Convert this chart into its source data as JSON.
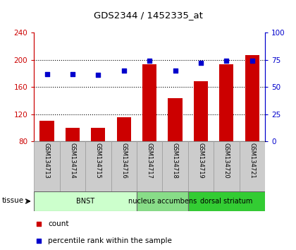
{
  "title": "GDS2344 / 1452335_at",
  "categories": [
    "GSM134713",
    "GSM134714",
    "GSM134715",
    "GSM134716",
    "GSM134717",
    "GSM134718",
    "GSM134719",
    "GSM134720",
    "GSM134721"
  ],
  "counts": [
    110,
    100,
    100,
    115,
    193,
    143,
    168,
    193,
    207
  ],
  "percentiles": [
    62,
    62,
    61,
    65,
    74,
    65,
    72,
    74,
    74
  ],
  "bar_color": "#cc0000",
  "dot_color": "#0000cc",
  "ylim_left": [
    80,
    240
  ],
  "ylim_right": [
    0,
    100
  ],
  "yticks_left": [
    80,
    120,
    160,
    200,
    240
  ],
  "yticks_right": [
    0,
    25,
    50,
    75,
    100
  ],
  "groups": [
    {
      "label": "BNST",
      "start": 0,
      "end": 3,
      "color": "#ccffcc"
    },
    {
      "label": "nucleus accumbens",
      "start": 4,
      "end": 5,
      "color": "#88dd88"
    },
    {
      "label": "dorsal striatum",
      "start": 6,
      "end": 8,
      "color": "#33cc33"
    }
  ],
  "tissue_label": "tissue",
  "legend_items": [
    {
      "label": "count",
      "color": "#cc0000"
    },
    {
      "label": "percentile rank within the sample",
      "color": "#0000cc"
    }
  ],
  "bg_color": "#ffffff",
  "tick_area_color": "#cccccc",
  "grid_color": "black"
}
